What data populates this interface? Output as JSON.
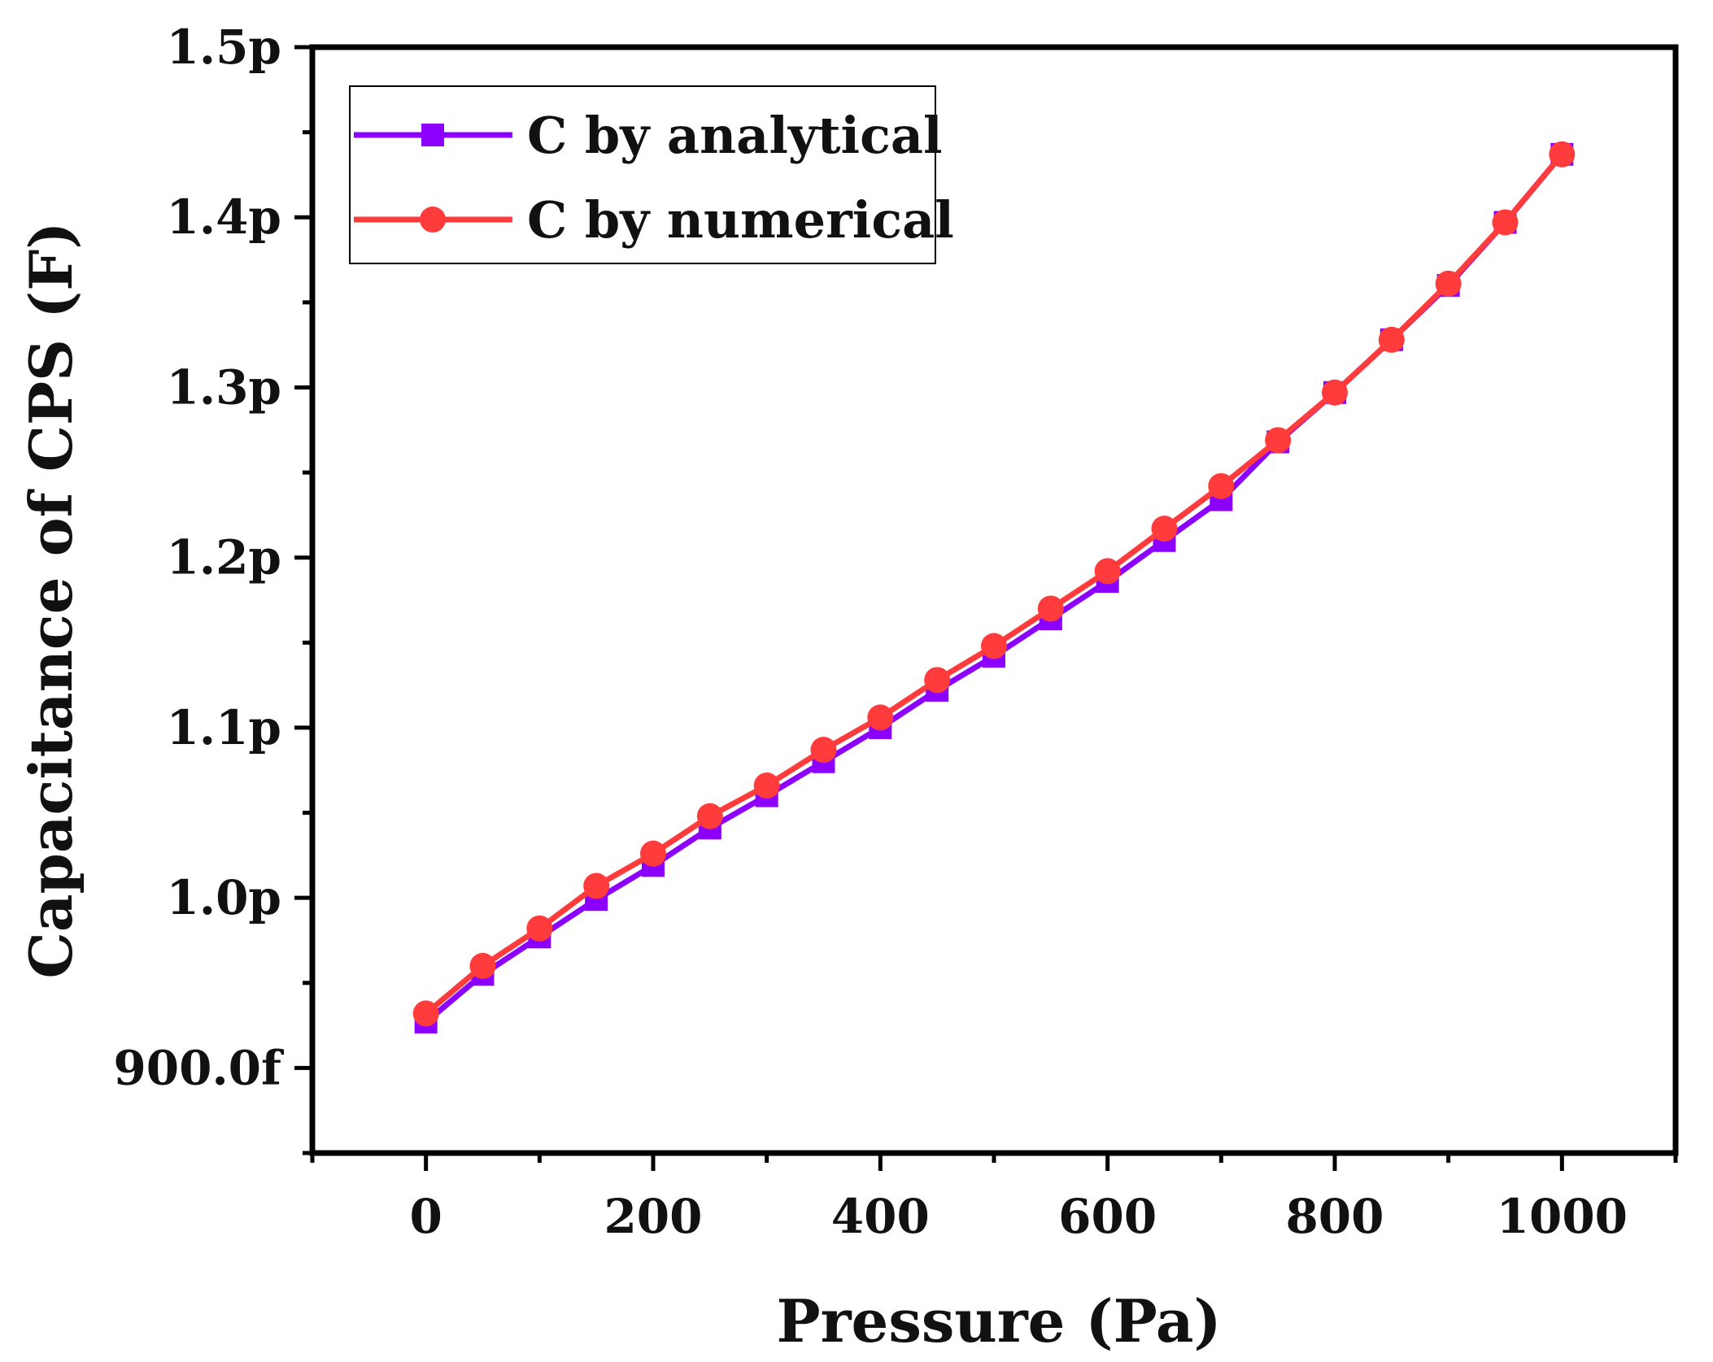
{
  "chart_data": {
    "type": "line",
    "title": "",
    "xlabel": "Pressure (Pa)",
    "ylabel": "Capacitance of CPS (F)",
    "xlim": [
      -100,
      1100
    ],
    "ylim": [
      0.85,
      1.5
    ],
    "x_ticks": [
      {
        "value": 0,
        "label": "0"
      },
      {
        "value": 200,
        "label": "200"
      },
      {
        "value": 400,
        "label": "400"
      },
      {
        "value": 600,
        "label": "600"
      },
      {
        "value": 800,
        "label": "800"
      },
      {
        "value": 1000,
        "label": "1000"
      }
    ],
    "y_ticks": [
      {
        "value": 0.9,
        "label": "900.0f"
      },
      {
        "value": 1.0,
        "label": "1.0p"
      },
      {
        "value": 1.1,
        "label": "1.1p"
      },
      {
        "value": 1.2,
        "label": "1.2p"
      },
      {
        "value": 1.3,
        "label": "1.3p"
      },
      {
        "value": 1.4,
        "label": "1.4p"
      },
      {
        "value": 1.5,
        "label": "1.5p"
      }
    ],
    "x": [
      0,
      50,
      100,
      150,
      200,
      250,
      300,
      350,
      400,
      450,
      500,
      550,
      600,
      650,
      700,
      750,
      800,
      850,
      900,
      950,
      1000
    ],
    "series": [
      {
        "name": "C by analytical",
        "color": "#8b00ff",
        "marker": "square",
        "values": [
          0.927,
          0.955,
          0.977,
          0.999,
          1.019,
          1.041,
          1.06,
          1.08,
          1.1,
          1.122,
          1.142,
          1.164,
          1.186,
          1.21,
          1.234,
          1.268,
          1.297,
          1.328,
          1.36,
          1.397,
          1.437
        ]
      },
      {
        "name": "C by numerical",
        "color": "#ff3b3b",
        "marker": "circle",
        "values": [
          0.932,
          0.96,
          0.982,
          1.007,
          1.026,
          1.048,
          1.066,
          1.087,
          1.106,
          1.128,
          1.148,
          1.17,
          1.192,
          1.217,
          1.242,
          1.269,
          1.297,
          1.328,
          1.361,
          1.397,
          1.437
        ]
      }
    ],
    "legend": {
      "placement": "top-left"
    },
    "grid": false
  }
}
